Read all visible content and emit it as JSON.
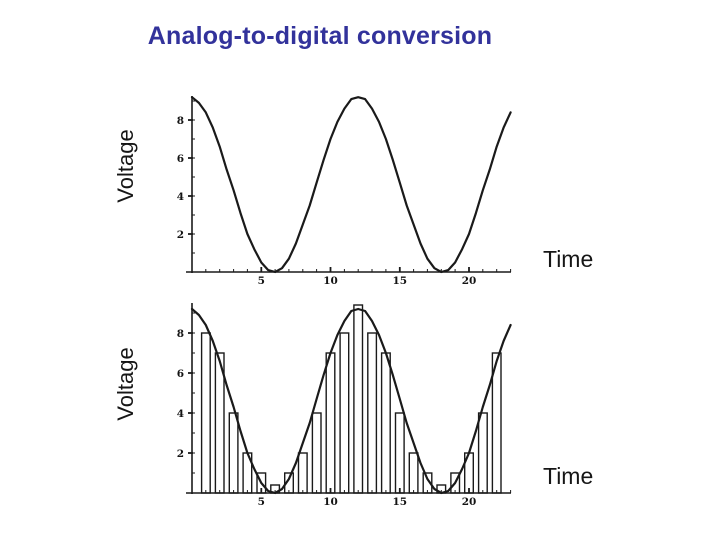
{
  "title": {
    "text": "Analog-to-digital conversion",
    "color": "#32329b"
  },
  "ink_color": "#1a1a1a",
  "chart_data": [
    {
      "name": "analog-signal",
      "type": "line",
      "title": "",
      "xlabel": "Time",
      "ylabel": "Voltage",
      "x_ticks": [
        5,
        10,
        15,
        20
      ],
      "y_ticks": [
        2,
        4,
        6,
        8
      ],
      "xlim": [
        0,
        23.2
      ],
      "ylim": [
        0,
        9.6
      ],
      "grid": "off",
      "curve": {
        "x_start": 0,
        "x_step": 0.5,
        "values": [
          9.2,
          8.9,
          8.4,
          7.6,
          6.6,
          5.4,
          4.3,
          3.1,
          2.0,
          1.2,
          0.5,
          0.1,
          0,
          0.2,
          0.7,
          1.5,
          2.5,
          3.5,
          4.7,
          5.9,
          7.0,
          7.9,
          8.6,
          9.1,
          9.2,
          9.1,
          8.6,
          7.9,
          7.0,
          5.9,
          4.7,
          3.5,
          2.5,
          1.5,
          0.7,
          0.2,
          0,
          0.1,
          0.5,
          1.2,
          2.0,
          3.1,
          4.3,
          5.4,
          6.6,
          7.6,
          8.4
        ]
      },
      "bars": null
    },
    {
      "name": "sampled-signal",
      "type": "line+bar",
      "title": "",
      "xlabel": "Time",
      "ylabel": "Voltage",
      "x_ticks": [
        5,
        10,
        15,
        20
      ],
      "y_ticks": [
        2,
        4,
        6,
        8
      ],
      "xlim": [
        0,
        23.2
      ],
      "ylim": [
        0,
        9.6
      ],
      "grid": "off",
      "curve": {
        "x_start": 0,
        "x_step": 0.5,
        "values": [
          9.2,
          8.9,
          8.4,
          7.6,
          6.6,
          5.4,
          4.3,
          3.1,
          2.0,
          1.2,
          0.5,
          0.1,
          0,
          0.2,
          0.7,
          1.5,
          2.5,
          3.5,
          4.7,
          5.9,
          7.0,
          7.9,
          8.6,
          9.1,
          9.2,
          9.1,
          8.6,
          7.9,
          7.0,
          5.9,
          4.7,
          3.5,
          2.5,
          1.5,
          0.7,
          0.2,
          0,
          0.1,
          0.5,
          1.2,
          2.0,
          3.1,
          4.3,
          5.4,
          6.6,
          7.6,
          8.4
        ]
      },
      "bars": {
        "x": [
          1,
          2,
          3,
          4,
          5,
          6,
          7,
          8,
          9,
          10,
          11,
          12,
          13,
          14,
          15,
          16,
          17,
          18,
          19,
          20,
          21,
          22
        ],
        "heights": [
          8,
          7,
          4,
          2,
          1,
          0.4,
          1,
          2,
          4,
          7,
          8,
          9.4,
          8,
          7,
          4,
          2,
          1,
          0.4,
          1,
          2,
          4,
          7
        ],
        "bar_width_units": 0.62
      }
    }
  ]
}
